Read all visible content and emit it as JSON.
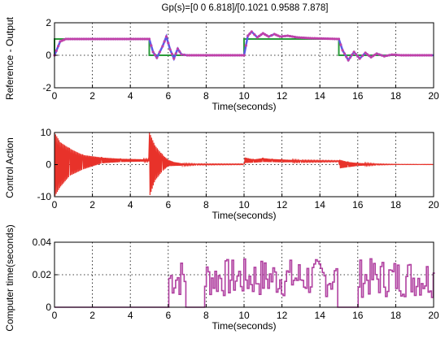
{
  "chart_data": [
    {
      "type": "line",
      "title": "Gp(s)=[0 0 6.818]/[0.1021 0.9588 7.878]",
      "xlabel": "Time(seconds)",
      "ylabel": "Reference - Output",
      "xlim": [
        0,
        20
      ],
      "ylim": [
        -2,
        2
      ],
      "xticks": [
        "0",
        "2",
        "4",
        "6",
        "8",
        "10",
        "12",
        "14",
        "16",
        "18",
        "20"
      ],
      "yticks": [
        "-2",
        "0",
        "2"
      ],
      "grid": true,
      "colors": {
        "reference": "#2a9a3a",
        "output": "#5b5be6",
        "marker": "#c040a8"
      },
      "series": [
        {
          "values_ref": [
            [
              0,
              0
            ],
            [
              0,
              1
            ],
            [
              5,
              1
            ],
            [
              5,
              0
            ],
            [
              10,
              0
            ],
            [
              10,
              1
            ],
            [
              15,
              1
            ],
            [
              15,
              0
            ],
            [
              20,
              0
            ]
          ]
        },
        {
          "values": [
            [
              0,
              0
            ],
            [
              0.3,
              0.85
            ],
            [
              0.6,
              1.0
            ],
            [
              5.0,
              1.0
            ],
            [
              5.2,
              0.2
            ],
            [
              5.4,
              -0.15
            ],
            [
              5.7,
              0.55
            ],
            [
              5.9,
              1.15
            ],
            [
              6.1,
              0.35
            ],
            [
              6.3,
              -0.2
            ],
            [
              6.5,
              0.4
            ],
            [
              6.7,
              0.05
            ],
            [
              7.0,
              0.0
            ],
            [
              10.0,
              0.0
            ],
            [
              10.2,
              1.2
            ],
            [
              10.4,
              1.45
            ],
            [
              10.7,
              1.1
            ],
            [
              11.0,
              1.35
            ],
            [
              11.3,
              1.15
            ],
            [
              11.6,
              1.3
            ],
            [
              11.9,
              1.15
            ],
            [
              12.3,
              1.2
            ],
            [
              12.8,
              1.1
            ],
            [
              13.5,
              1.05
            ],
            [
              15.0,
              1.0
            ],
            [
              15.2,
              0.3
            ],
            [
              15.5,
              -0.3
            ],
            [
              15.8,
              0.2
            ],
            [
              16.1,
              -0.2
            ],
            [
              16.4,
              0.15
            ],
            [
              16.7,
              -0.12
            ],
            [
              17.0,
              0.1
            ],
            [
              17.4,
              -0.06
            ],
            [
              17.8,
              0.04
            ],
            [
              18.3,
              0.0
            ],
            [
              20.0,
              0.0
            ]
          ]
        }
      ]
    },
    {
      "type": "line",
      "title": "",
      "xlabel": "Time(seconds)",
      "ylabel": "Control Action",
      "xlim": [
        0,
        20
      ],
      "ylim": [
        -10,
        10
      ],
      "xticks": [
        "0",
        "2",
        "4",
        "6",
        "8",
        "10",
        "12",
        "14",
        "16",
        "18",
        "20"
      ],
      "yticks": [
        "-10",
        "0",
        "10"
      ],
      "grid": true,
      "colors": {
        "line": "#e8322a"
      },
      "series": [
        {
          "envelope": [
            [
              0,
              10,
              -10
            ],
            [
              0.3,
              7,
              -7
            ],
            [
              0.8,
              5,
              -3.5
            ],
            [
              1.5,
              3,
              -1.5
            ],
            [
              2.5,
              2.2,
              0.4
            ],
            [
              3.5,
              1.8,
              0.8
            ],
            [
              5.0,
              1.6,
              1.0
            ],
            [
              5.01,
              10,
              -10
            ],
            [
              5.3,
              6,
              -5
            ],
            [
              5.7,
              3,
              -2
            ],
            [
              6.0,
              1.5,
              -0.5
            ],
            [
              6.3,
              0.8,
              -0.4
            ],
            [
              6.8,
              0.3,
              -0.3
            ],
            [
              7.5,
              0.2,
              -0.1
            ],
            [
              10.0,
              0.2,
              0.0
            ],
            [
              10.05,
              2.2,
              0.5
            ],
            [
              10.5,
              1.6,
              0.6
            ],
            [
              11.0,
              2.0,
              0.8
            ],
            [
              11.5,
              1.7,
              0.8
            ],
            [
              12.0,
              1.6,
              0.7
            ],
            [
              13.0,
              1.3,
              0.8
            ],
            [
              15.0,
              1.2,
              0.9
            ],
            [
              15.05,
              1.5,
              -1.2
            ],
            [
              15.5,
              0.8,
              -0.8
            ],
            [
              16.0,
              0.5,
              -0.4
            ],
            [
              17.0,
              0.2,
              -0.1
            ],
            [
              18.0,
              0.1,
              0.0
            ],
            [
              20.0,
              0.05,
              0.0
            ]
          ]
        }
      ]
    },
    {
      "type": "line",
      "title": "",
      "xlabel": "Time(seconds)",
      "ylabel": "Computer time(seconds)",
      "xlim": [
        0,
        20
      ],
      "ylim": [
        0,
        0.04
      ],
      "xticks": [
        "0",
        "2",
        "4",
        "6",
        "8",
        "10",
        "12",
        "14",
        "16",
        "18",
        "20"
      ],
      "yticks": [
        "0",
        "0.02",
        "0.04"
      ],
      "grid": true,
      "colors": {
        "line": "#b040a0"
      },
      "series": [
        {
          "active_intervals": [
            [
              5.95,
              6.9
            ],
            [
              7.9,
              14.9
            ],
            [
              15.95,
              20.0
            ]
          ],
          "low": 0.0,
          "high_range": [
            0.006,
            0.03
          ]
        }
      ]
    }
  ]
}
